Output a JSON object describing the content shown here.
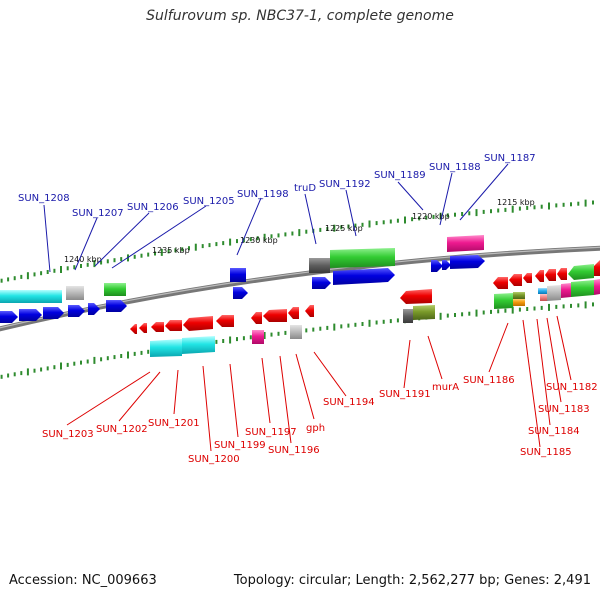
{
  "title": "Sulfurovum sp. NBC37-1, complete genome",
  "accession": "Accession: NC_009663",
  "summary": "Topology: circular; Length: 2,562,277 bp; Genes: 2,491",
  "colors": {
    "forward_label": "#1a1aaa",
    "reverse_label": "#dd0000",
    "backbone": "#7a7a7a",
    "tick": "#2e8b2e"
  },
  "kbp_labels": [
    "1240 kbp",
    "1235 kbp",
    "1230 kbp",
    "1225 kbp",
    "1220 kbp",
    "1215 kbp"
  ],
  "forward_labels": [
    "SUN_1208",
    "SUN_1207",
    "SUN_1206",
    "SUN_1205",
    "SUN_1198",
    "truD",
    "SUN_1192",
    "SUN_1189",
    "SUN_1188",
    "SUN_1187"
  ],
  "reverse_labels": [
    "SUN_1203",
    "SUN_1202",
    "SUN_1201",
    "SUN_1200",
    "SUN_1199",
    "SUN_1197",
    "SUN_1196",
    "gph",
    "SUN_1194",
    "SUN_1191",
    "murA",
    "SUN_1186",
    "SUN_1185",
    "SUN_1184",
    "SUN_1183",
    "SUN_1182"
  ]
}
